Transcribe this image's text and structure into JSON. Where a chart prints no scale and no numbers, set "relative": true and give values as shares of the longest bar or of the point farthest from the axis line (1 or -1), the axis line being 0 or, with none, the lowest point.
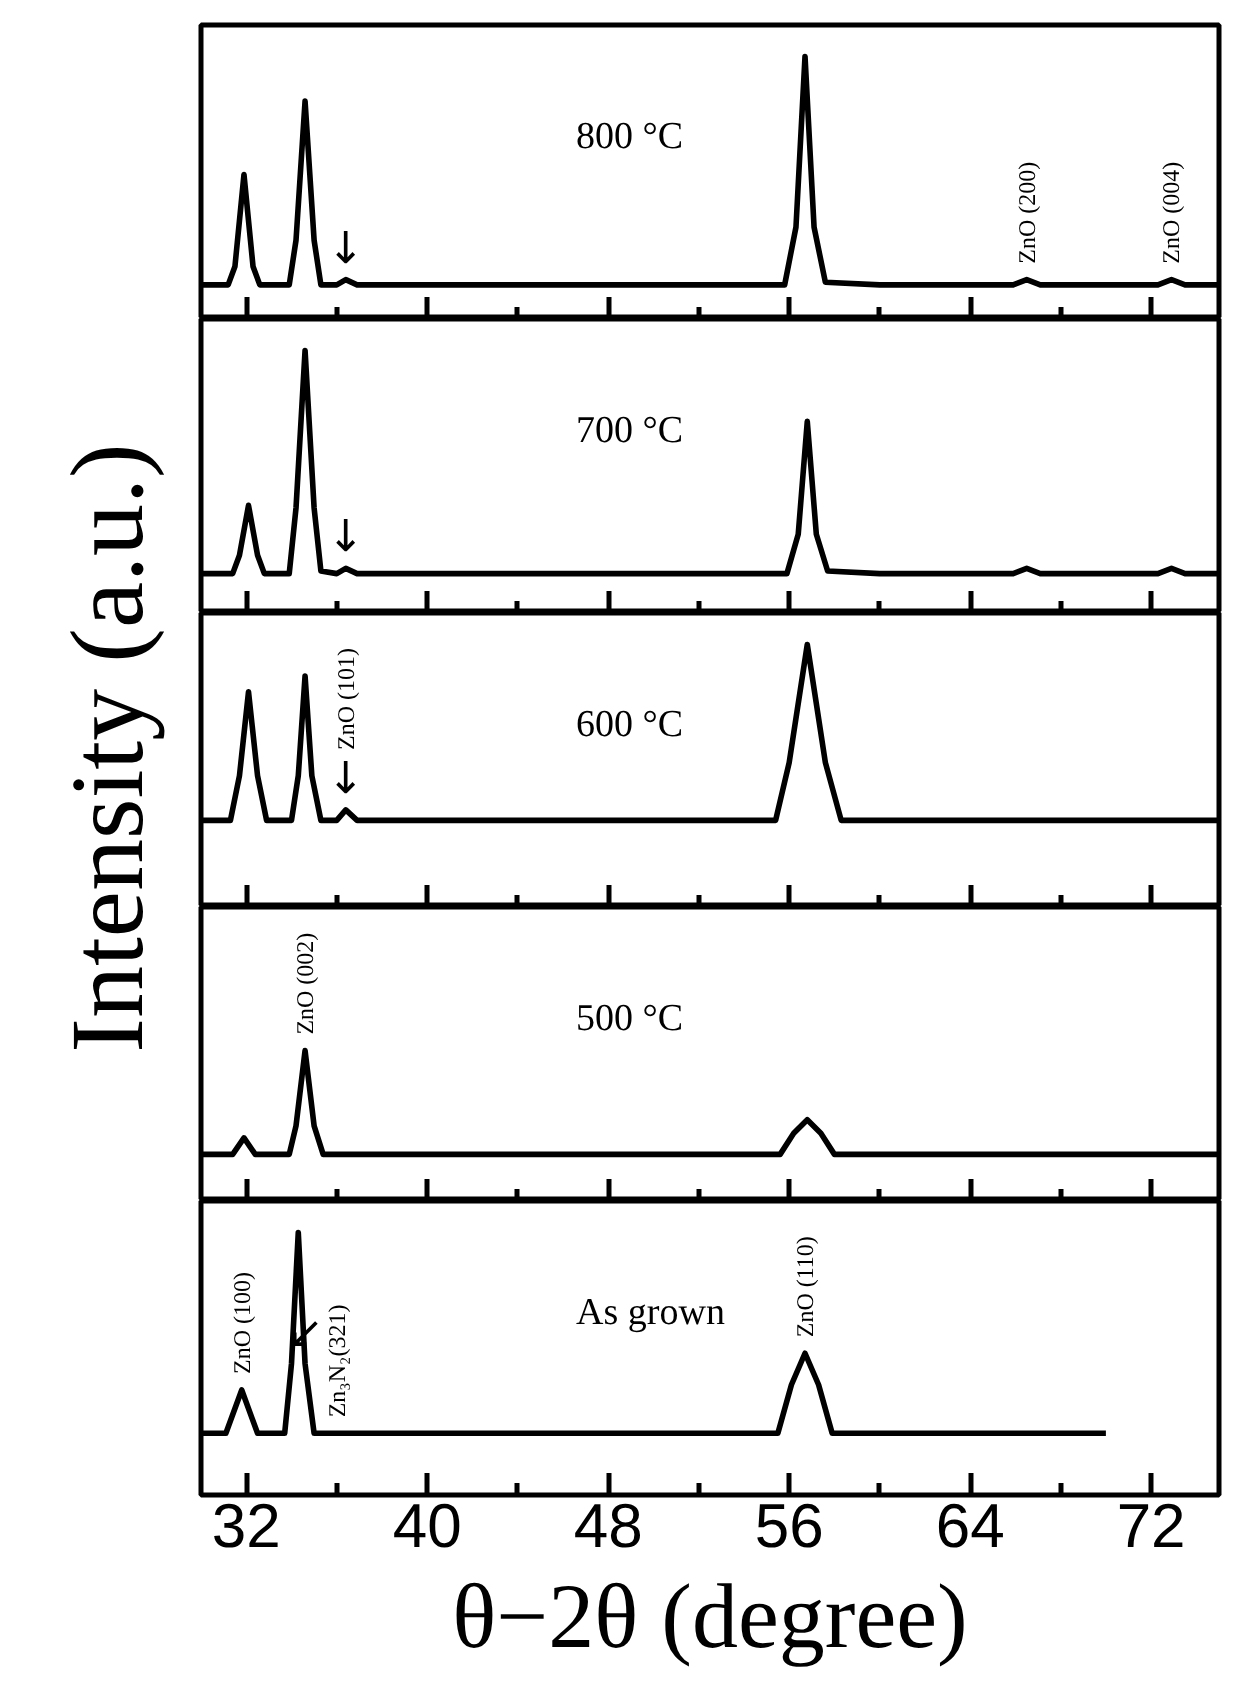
{
  "chart_data": [
    {
      "type": "line",
      "relative": true,
      "grid": false,
      "tick_labels": false,
      "xlim": [
        30,
        75
      ],
      "xticks": [
        32,
        {
          "value": 36,
          "label": null
        },
        40,
        {
          "value": 44,
          "label": null
        },
        48,
        {
          "value": 52,
          "label": null
        },
        56,
        {
          "value": 60,
          "label": null
        },
        64,
        {
          "value": 68,
          "label": null
        },
        72
      ],
      "x": [
        30,
        31.2,
        31.5,
        31.9,
        32.3,
        32.6,
        33.9,
        34.2,
        34.6,
        35.0,
        35.3,
        36.0,
        36.4,
        36.9,
        40,
        50,
        55.8,
        56.3,
        56.7,
        57.1,
        57.6,
        60,
        65.9,
        66.5,
        67.1,
        72.3,
        72.9,
        73.5,
        75
      ],
      "series": [
        {
          "color": "#000000",
          "values": [
            0.13,
            0.13,
            0.2,
            0.55,
            0.2,
            0.13,
            0.13,
            0.3,
            0.83,
            0.3,
            0.13,
            0.13,
            0.15,
            0.13,
            0.13,
            0.13,
            0.13,
            0.35,
            1,
            0.35,
            0.14,
            0.13,
            0.13,
            0.15,
            0.13,
            0.13,
            0.15,
            0.13,
            0.13
          ]
        }
      ],
      "annotations": [
        "800 °C",
        {
          "text": "ZnO (200)",
          "x": 66.5,
          "y": 0.15
        },
        {
          "text": "ZnO (004)",
          "x": 72.9,
          "y": 0.15
        },
        {
          "text": "↓",
          "x": 36.4,
          "y": 0.15
        }
      ]
    },
    {
      "type": "line",
      "relative": true,
      "grid": false,
      "tick_labels": false,
      "xlim": [
        30,
        75
      ],
      "xticks": [
        32,
        {
          "value": 36,
          "label": null
        },
        40,
        {
          "value": 44,
          "label": null
        },
        48,
        {
          "value": 52,
          "label": null
        },
        56,
        {
          "value": 60,
          "label": null
        },
        64,
        {
          "value": 68,
          "label": null
        },
        72
      ],
      "x": [
        30,
        31.4,
        31.7,
        32.1,
        32.5,
        32.8,
        33.9,
        34.2,
        34.6,
        35.0,
        35.3,
        36.0,
        36.4,
        36.9,
        40,
        50,
        55.9,
        56.4,
        56.8,
        57.2,
        57.7,
        60,
        65.9,
        66.5,
        67.1,
        72.3,
        72.9,
        73.5,
        75
      ],
      "series": [
        {
          "color": "#000000",
          "values": [
            0.15,
            0.15,
            0.22,
            0.41,
            0.22,
            0.15,
            0.15,
            0.4,
            1,
            0.4,
            0.16,
            0.15,
            0.17,
            0.15,
            0.15,
            0.15,
            0.15,
            0.3,
            0.73,
            0.3,
            0.16,
            0.15,
            0.15,
            0.17,
            0.15,
            0.15,
            0.17,
            0.15,
            0.15
          ]
        }
      ],
      "annotations": [
        "700 °C",
        {
          "text": "↓",
          "x": 36.4,
          "y": 0.17
        }
      ]
    },
    {
      "type": "line",
      "relative": true,
      "grid": false,
      "tick_labels": false,
      "ylabel": "Intensity (a.u.)",
      "xlim": [
        30,
        75
      ],
      "xticks": [
        32,
        {
          "value": 36,
          "label": null
        },
        40,
        {
          "value": 44,
          "label": null
        },
        48,
        {
          "value": 52,
          "label": null
        },
        56,
        {
          "value": 60,
          "label": null
        },
        64,
        {
          "value": 68,
          "label": null
        },
        72
      ],
      "x": [
        30,
        31.3,
        31.7,
        32.1,
        32.5,
        32.9,
        34.0,
        34.3,
        34.6,
        34.9,
        35.3,
        36.0,
        36.4,
        36.9,
        40,
        50,
        55.4,
        56.0,
        56.8,
        57.6,
        58.3,
        62,
        75
      ],
      "series": [
        {
          "color": "#000000",
          "values": [
            0.33,
            0.33,
            0.5,
            0.82,
            0.5,
            0.33,
            0.33,
            0.5,
            0.88,
            0.5,
            0.33,
            0.33,
            0.37,
            0.33,
            0.33,
            0.33,
            0.33,
            0.55,
            1,
            0.55,
            0.33,
            0.33,
            0.33
          ]
        }
      ],
      "annotations": [
        "600 °C",
        {
          "text": "ZnO (101)",
          "x": 36.4,
          "y": 0.37
        },
        {
          "text": "↓",
          "x": 36.4,
          "y": 0.37
        }
      ]
    },
    {
      "type": "line",
      "relative": true,
      "grid": false,
      "tick_labels": false,
      "xlim": [
        30,
        75
      ],
      "xticks": [
        32,
        {
          "value": 36,
          "label": null
        },
        40,
        {
          "value": 44,
          "label": null
        },
        48,
        {
          "value": 52,
          "label": null
        },
        56,
        {
          "value": 60,
          "label": null
        },
        64,
        {
          "value": 68,
          "label": null
        },
        72
      ],
      "x": [
        30,
        31.4,
        31.9,
        32.4,
        33.9,
        34.2,
        34.6,
        35.0,
        35.4,
        40,
        50,
        55.6,
        56.2,
        56.8,
        57.4,
        58.0,
        62,
        75
      ],
      "series": [
        {
          "color": "#000000",
          "values": [
            0.31,
            0.31,
            0.42,
            0.31,
            0.31,
            0.5,
            1,
            0.5,
            0.31,
            0.31,
            0.31,
            0.31,
            0.45,
            0.54,
            0.45,
            0.31,
            0.31,
            0.31
          ]
        }
      ],
      "annotations": [
        "500 °C",
        {
          "text": "ZnO (002)",
          "x": 34.6,
          "y": 1
        }
      ]
    },
    {
      "type": "line",
      "relative": true,
      "grid": false,
      "tick_labels": "x",
      "xlabel": "θ−2θ (degree)",
      "xlim": [
        30,
        75
      ],
      "xticks": [
        32,
        {
          "value": 36,
          "label": null
        },
        40,
        {
          "value": 44,
          "label": null
        },
        48,
        {
          "value": 52,
          "label": null
        },
        56,
        {
          "value": 60,
          "label": null
        },
        64,
        {
          "value": 68,
          "label": null
        },
        72
      ],
      "x": [
        30,
        31.1,
        31.8,
        32.5,
        33.7,
        34.0,
        34.3,
        34.6,
        35.0,
        36.0,
        40,
        50,
        55.5,
        56.1,
        56.7,
        57.3,
        57.9,
        62,
        70
      ],
      "series": [
        {
          "color": "#000000",
          "values": [
            0.235,
            0.235,
            0.4,
            0.235,
            0.235,
            0.5,
            1,
            0.5,
            0.235,
            0.235,
            0.235,
            0.235,
            0.235,
            0.42,
            0.54,
            0.42,
            0.235,
            0.235,
            0.235
          ]
        }
      ],
      "annotations": [
        "As grown",
        {
          "text": "ZnO (100)",
          "x": 31.8,
          "y": 0.4
        },
        {
          "text": "Zn₃N₂(321)",
          "x": 36.0,
          "y": 0.235
        },
        {
          "text": "↙",
          "x": 34.6,
          "y": 0.5
        },
        {
          "text": "ZnO (110)",
          "x": 56.7,
          "y": 0.54
        }
      ]
    }
  ]
}
